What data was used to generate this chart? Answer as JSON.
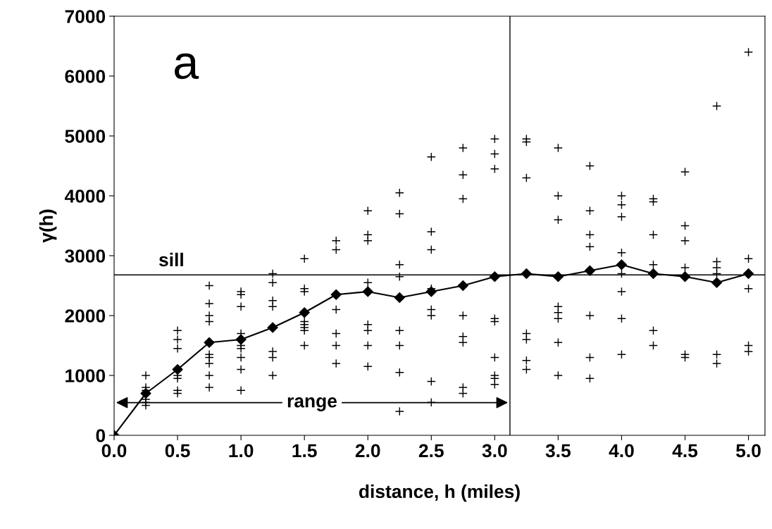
{
  "chart_data": {
    "type": "scatter",
    "xlabel": "distance, h (miles)",
    "ylabel": "γ(h)",
    "xlim": [
      0,
      5.13
    ],
    "ylim": [
      0,
      7000
    ],
    "xticks": [
      {
        "value": 0,
        "label": "0.0"
      },
      {
        "value": 0.5,
        "label": "0.5"
      },
      {
        "value": 1,
        "label": "1.0"
      },
      {
        "value": 1.5,
        "label": "1.5"
      },
      {
        "value": 2,
        "label": "2.0"
      },
      {
        "value": 2.5,
        "label": "2.5"
      },
      {
        "value": 3,
        "label": "3.0"
      },
      {
        "value": 3.5,
        "label": "3.5"
      },
      {
        "value": 4,
        "label": "4.0"
      },
      {
        "value": 4.5,
        "label": "4.5"
      },
      {
        "value": 5,
        "label": "5.0"
      }
    ],
    "yticks": [
      0,
      1000,
      2000,
      3000,
      4000,
      5000,
      6000,
      7000
    ],
    "grid": false,
    "legend": false,
    "series": [
      {
        "marker": "cross",
        "color": "#000000",
        "x": [
          0.25,
          0.25,
          0.25,
          0.25,
          0.25,
          0.25,
          0.5,
          0.5,
          0.5,
          0.5,
          0.5,
          0.5,
          0.5,
          0.5,
          0.75,
          0.75,
          0.75,
          0.75,
          0.75,
          0.75,
          0.75,
          0.75,
          0.75,
          1,
          1,
          1,
          1,
          1,
          1,
          1,
          1,
          1,
          1.25,
          1.25,
          1.25,
          1.25,
          1.25,
          1.25,
          1.25,
          1.5,
          1.5,
          1.5,
          1.5,
          1.5,
          1.5,
          1.5,
          1.5,
          1.75,
          1.75,
          1.75,
          1.75,
          1.75,
          1.75,
          2,
          2,
          2,
          2,
          2,
          2,
          2,
          2,
          2.25,
          2.25,
          2.25,
          2.25,
          2.25,
          2.25,
          2.25,
          2.25,
          2.5,
          2.5,
          2.5,
          2.5,
          2.5,
          2.5,
          2.5,
          2.5,
          2.75,
          2.75,
          2.75,
          2.75,
          2.75,
          2.75,
          2.75,
          2.75,
          3,
          3,
          3,
          3,
          3,
          3,
          3,
          3,
          3,
          3.25,
          3.25,
          3.25,
          3.25,
          3.25,
          3.25,
          3.25,
          3.5,
          3.5,
          3.5,
          3.5,
          3.5,
          3.5,
          3.5,
          3.5,
          3.75,
          3.75,
          3.75,
          3.75,
          3.75,
          3.75,
          3.75,
          4,
          4,
          4,
          4,
          4,
          4,
          4,
          4,
          4.25,
          4.25,
          4.25,
          4.25,
          4.25,
          4.25,
          4.5,
          4.5,
          4.5,
          4.5,
          4.5,
          4.5,
          4.75,
          4.75,
          4.75,
          4.75,
          4.75,
          4.75,
          5,
          5,
          5,
          5,
          5
        ],
        "values": [
          1000,
          800,
          750,
          600,
          550,
          500,
          1750,
          1600,
          1450,
          1100,
          1000,
          950,
          750,
          700,
          2500,
          2200,
          2000,
          1900,
          1350,
          1300,
          1200,
          1000,
          800,
          2400,
          2350,
          2150,
          1700,
          1500,
          1450,
          1300,
          1100,
          750,
          2700,
          2550,
          2250,
          2150,
          1400,
          1300,
          1000,
          2950,
          2450,
          2400,
          1900,
          1850,
          1800,
          1750,
          1500,
          3250,
          3100,
          2100,
          1700,
          1500,
          1200,
          3750,
          3350,
          3250,
          2550,
          1850,
          1750,
          1500,
          1150,
          4050,
          3700,
          2850,
          2650,
          1750,
          1500,
          1050,
          400,
          4650,
          3400,
          3100,
          2450,
          2100,
          2000,
          900,
          550,
          4800,
          4350,
          3950,
          2000,
          1650,
          1550,
          800,
          700,
          4950,
          4700,
          4450,
          1950,
          1900,
          1300,
          1000,
          950,
          850,
          4950,
          4900,
          4300,
          1700,
          1600,
          1250,
          1100,
          4800,
          4000,
          3600,
          2150,
          2050,
          1950,
          1550,
          1000,
          4500,
          3750,
          3350,
          3150,
          2000,
          1300,
          950,
          4000,
          3850,
          3650,
          3050,
          2700,
          2400,
          1950,
          1350,
          3950,
          3900,
          3350,
          2850,
          1750,
          1500,
          4400,
          3500,
          3250,
          2800,
          1350,
          1300,
          5500,
          2900,
          2800,
          2700,
          1350,
          1200,
          6400,
          2950,
          2450,
          1500,
          1400
        ]
      },
      {
        "type": "line",
        "marker": "diamond",
        "line_style": "solid",
        "color": "#000000",
        "x": [
          0,
          0.25,
          0.5,
          0.75,
          1,
          1.25,
          1.5,
          1.75,
          2,
          2.25,
          2.5,
          2.75,
          3,
          3.25,
          3.5,
          3.75,
          4,
          4.25,
          4.5,
          4.75,
          5
        ],
        "values": [
          0,
          700,
          1100,
          1550,
          1600,
          1800,
          2050,
          2350,
          2400,
          2300,
          2400,
          2500,
          2650,
          2700,
          2650,
          2750,
          2850,
          2700,
          2650,
          2550,
          2700
        ]
      }
    ],
    "ref_lines": [
      {
        "axis": "y",
        "value": 2680,
        "label": "sill",
        "color": "#000000"
      },
      {
        "axis": "x",
        "value": 3.12,
        "color": "#000000"
      }
    ],
    "annotations": [
      "a",
      "range"
    ]
  }
}
